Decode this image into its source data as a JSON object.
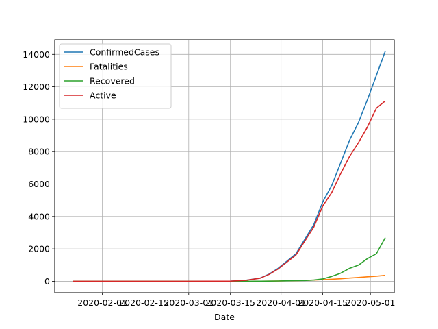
{
  "chart_data": {
    "type": "line",
    "title": "",
    "xlabel": "Date",
    "ylabel": "",
    "grid": true,
    "legend_position": "upper-left",
    "xlim": [
      "2020-01-16",
      "2020-05-09"
    ],
    "ylim": [
      -700,
      14900
    ],
    "x_ticks": [
      "2020-02-01",
      "2020-02-15",
      "2020-03-01",
      "2020-03-15",
      "2020-04-01",
      "2020-04-15",
      "2020-05-01"
    ],
    "y_ticks": [
      0,
      2000,
      4000,
      6000,
      8000,
      10000,
      12000,
      14000
    ],
    "x": [
      "2020-01-22",
      "2020-02-01",
      "2020-02-15",
      "2020-03-01",
      "2020-03-15",
      "2020-03-20",
      "2020-03-25",
      "2020-03-28",
      "2020-03-31",
      "2020-04-03",
      "2020-04-06",
      "2020-04-09",
      "2020-04-12",
      "2020-04-15",
      "2020-04-18",
      "2020-04-21",
      "2020-04-24",
      "2020-04-27",
      "2020-04-30",
      "2020-05-03",
      "2020-05-06"
    ],
    "series": [
      {
        "name": "ConfirmedCases",
        "color": "#1f77b4",
        "values": [
          0,
          0,
          0,
          0,
          10,
          60,
          200,
          450,
          800,
          1250,
          1700,
          2600,
          3500,
          4900,
          5900,
          7300,
          8700,
          9800,
          11200,
          12700,
          14200
        ]
      },
      {
        "name": "Fatalities",
        "color": "#ff7f0e",
        "values": [
          0,
          0,
          0,
          0,
          0,
          1,
          5,
          10,
          20,
          30,
          40,
          55,
          75,
          100,
          130,
          160,
          200,
          240,
          280,
          320,
          370
        ]
      },
      {
        "name": "Recovered",
        "color": "#2ca02c",
        "values": [
          0,
          0,
          0,
          0,
          0,
          2,
          5,
          10,
          20,
          30,
          40,
          50,
          80,
          150,
          300,
          500,
          800,
          1000,
          1400,
          1700,
          2700
        ]
      },
      {
        "name": "Active",
        "color": "#d62728",
        "values": [
          0,
          0,
          0,
          0,
          10,
          57,
          190,
          430,
          760,
          1190,
          1620,
          2495,
          3345,
          4650,
          5470,
          6640,
          7700,
          8560,
          9520,
          10680,
          11130
        ]
      }
    ]
  }
}
